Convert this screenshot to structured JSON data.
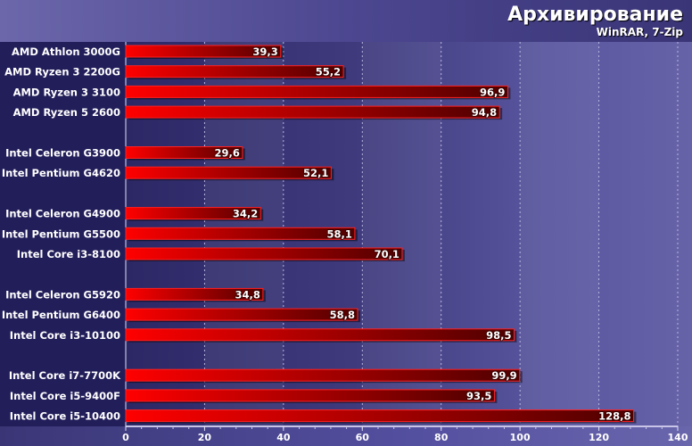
{
  "chart_data": {
    "type": "bar",
    "orientation": "horizontal",
    "title": "Архивирование",
    "subtitle": "WinRAR, 7-Zip",
    "categories": [
      "AMD Athlon 3000G",
      "AMD Ryzen 3 2200G",
      "AMD Ryzen 3 3100",
      "AMD Ryzen 5 2600",
      "Intel Celeron G3900",
      "Intel Pentium G4620",
      "Intel Celeron G4900",
      "Intel Pentium G5500",
      "Intel Core i3-8100",
      "Intel Celeron G5920",
      "Intel Pentium G6400",
      "Intel Core i3-10100",
      "Intel Core i7-7700K",
      "Intel Core i5-9400F",
      "Intel Core i5-10400"
    ],
    "groups": [
      4,
      2,
      3,
      3,
      3
    ],
    "values": [
      39.3,
      55.2,
      96.9,
      94.8,
      29.6,
      52.1,
      34.2,
      58.1,
      70.1,
      34.8,
      58.8,
      98.5,
      99.9,
      93.5,
      128.8
    ],
    "value_labels": [
      "39,3",
      "55,2",
      "96,9",
      "94,8",
      "29,6",
      "52,1",
      "34,2",
      "58,1",
      "70,1",
      "34,8",
      "58,8",
      "98,5",
      "99,9",
      "93,5",
      "128,8"
    ],
    "xlim": [
      0,
      140
    ],
    "xticks": [
      0,
      20,
      40,
      60,
      80,
      100,
      120,
      140
    ],
    "grid": true,
    "bar_color_start": "#ff0000",
    "bar_color_end": "#4e0000"
  }
}
